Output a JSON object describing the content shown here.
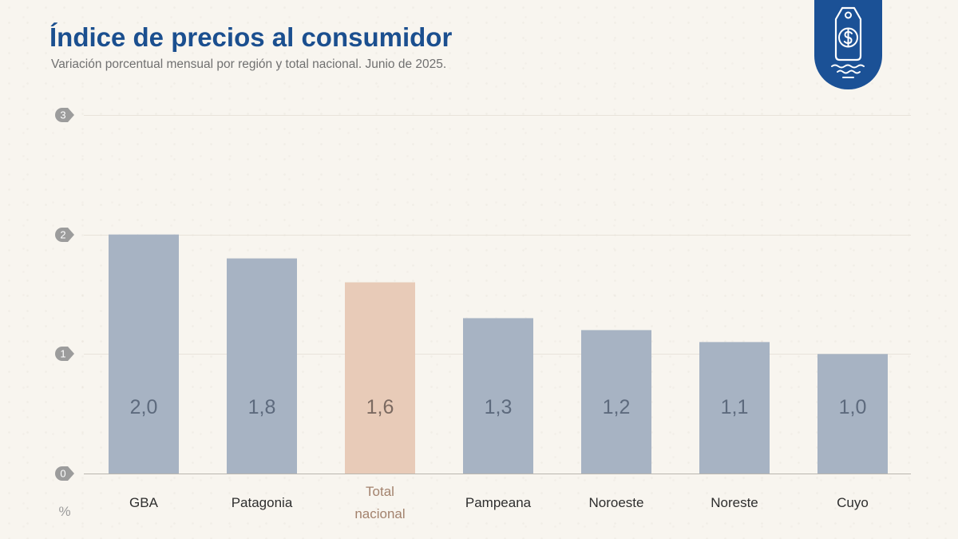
{
  "logo": {
    "icon": "price-tag-dollar-icon",
    "color": "#1b5196"
  },
  "chart_data": {
    "type": "bar",
    "title": "Índice de precios al consumidor",
    "subtitle": "Variación porcentual mensual por región y total nacional. Junio de 2025.",
    "categories": [
      "GBA",
      "Patagonia",
      "Total nacional",
      "Pampeana",
      "Noroeste",
      "Noreste",
      "Cuyo"
    ],
    "values": [
      2.0,
      1.8,
      1.6,
      1.3,
      1.2,
      1.1,
      1.0
    ],
    "value_labels": [
      "2,0",
      "1,8",
      "1,6",
      "1,3",
      "1,2",
      "1,1",
      "1,0"
    ],
    "ylabel": "%",
    "xlabel": "",
    "ylim": [
      0,
      3
    ],
    "yticks": [
      0,
      1,
      2,
      3
    ],
    "ytick_labels": [
      "0",
      "1",
      "2",
      "3"
    ],
    "grid": true,
    "colors": {
      "title": "#1b4f8f",
      "bar_colors": [
        "#a7b3c3",
        "#a7b3c3",
        "#e8cbb8",
        "#a7b3c3",
        "#a7b3c3",
        "#a7b3c3",
        "#a7b3c3"
      ],
      "value_label_colors": [
        "#5d6a7d",
        "#5d6a7d",
        "#7b6a61",
        "#5d6a7d",
        "#5d6a7d",
        "#5d6a7d",
        "#5d6a7d"
      ],
      "category_label_colors": [
        "#2e2e2e",
        "#2e2e2e",
        "#a3826d",
        "#2e2e2e",
        "#2e2e2e",
        "#2e2e2e",
        "#2e2e2e"
      ],
      "gridline": "#e8e3da",
      "baseline": "#bab6af",
      "tick_badge": "#9c9c9c"
    }
  }
}
